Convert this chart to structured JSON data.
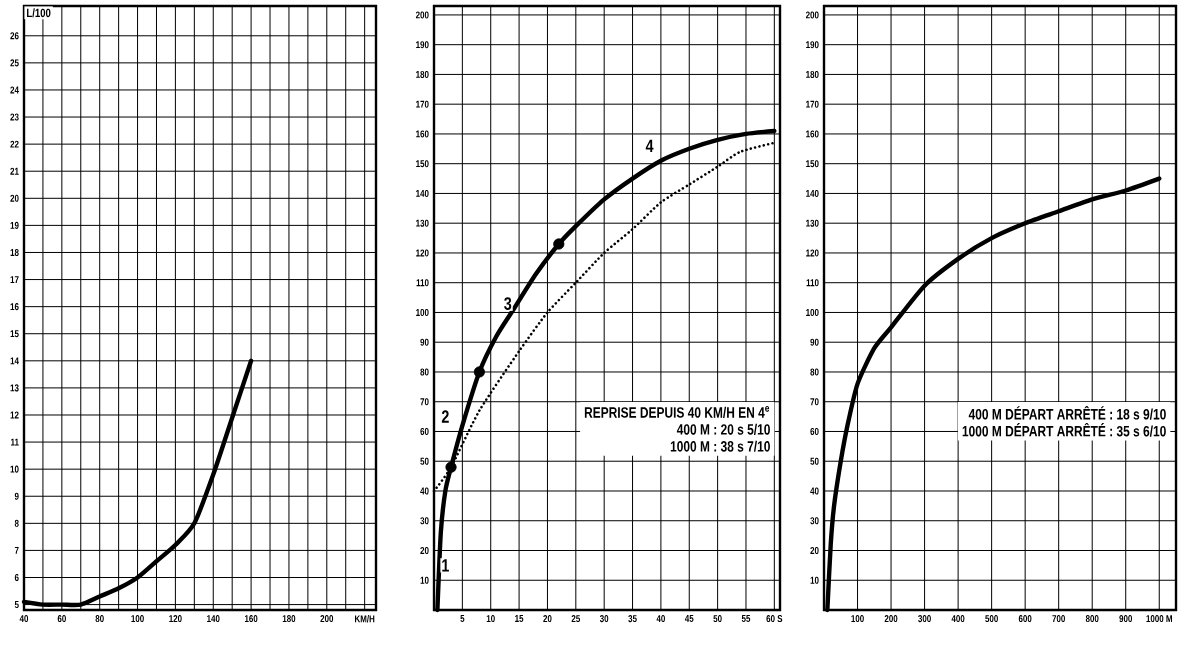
{
  "chart_data": [
    {
      "type": "line",
      "ylabel": "L/100",
      "xlim": [
        40,
        226
      ],
      "ylim": [
        4.8,
        27.1
      ],
      "grid": true,
      "xticks": [
        40,
        {
          "value": 50,
          "label": null
        },
        60,
        {
          "value": 70,
          "label": null
        },
        80,
        {
          "value": 90,
          "label": null
        },
        100,
        {
          "value": 110,
          "label": null
        },
        120,
        {
          "value": 130,
          "label": null
        },
        140,
        {
          "value": 150,
          "label": null
        },
        160,
        {
          "value": 170,
          "label": null
        },
        180,
        {
          "value": 190,
          "label": null
        },
        200,
        {
          "value": 210,
          "label": null
        },
        {
          "value": 220,
          "label": "KM/H"
        }
      ],
      "yticks": [
        5,
        6,
        7,
        8,
        9,
        10,
        11,
        12,
        13,
        14,
        15,
        16,
        17,
        18,
        19,
        20,
        21,
        22,
        23,
        24,
        25,
        26
      ],
      "series": [
        {
          "color": "#000000",
          "x": [
            40,
            50,
            60,
            70,
            80,
            90,
            100,
            110,
            120,
            130,
            140,
            150,
            160
          ],
          "values": [
            5.1,
            5.0,
            5.0,
            5.0,
            5.3,
            5.6,
            6.0,
            6.6,
            7.2,
            8.0,
            9.8,
            11.9,
            14.0
          ]
        }
      ]
    },
    {
      "type": "line",
      "xlim": [
        0,
        61
      ],
      "ylim": [
        0,
        203
      ],
      "grid": true,
      "xticks": [
        5,
        10,
        15,
        20,
        25,
        30,
        35,
        40,
        45,
        50,
        55,
        {
          "value": 60,
          "label": "60 S"
        }
      ],
      "yticks": [
        10,
        20,
        30,
        40,
        50,
        60,
        70,
        80,
        90,
        100,
        110,
        120,
        130,
        140,
        150,
        160,
        170,
        180,
        190,
        200
      ],
      "series": [
        {
          "color": "#000000",
          "x": [
            0.6,
            1.2,
            2,
            3,
            5,
            8,
            11,
            14,
            18,
            22,
            25,
            30,
            35,
            40,
            45,
            50,
            55,
            60
          ],
          "values": [
            0,
            26,
            40,
            48,
            62,
            80,
            92,
            101,
            113,
            123,
            129,
            138,
            145,
            151,
            155,
            158,
            160,
            161
          ]
        },
        {
          "color": "#000000",
          "line_style": "dotted",
          "x": [
            0,
            3,
            8,
            15,
            20,
            25,
            30,
            35,
            40,
            45,
            50,
            54,
            60
          ],
          "values": [
            40,
            48,
            67,
            87,
            100,
            110,
            120,
            128,
            137,
            143,
            149,
            154,
            157
          ]
        },
        {
          "type": "scatter",
          "marker": "circle",
          "color": "#000000",
          "x": [
            3,
            8,
            22
          ],
          "values": [
            48,
            80,
            123
          ]
        }
      ],
      "annotations": [
        {
          "text": "1",
          "x": 2,
          "y": 15
        },
        {
          "text": "2",
          "x": 2,
          "y": 65
        },
        {
          "text": "3",
          "x": 13,
          "y": 103
        },
        {
          "text": "4",
          "x": 38,
          "y": 156
        },
        "REPRISE DEPUIS 40 KM/H EN 4$^{e}$",
        "400 M : 20 s 5/10",
        "1000 M : 38 s 7/10"
      ]
    },
    {
      "type": "line",
      "xlim": [
        0,
        1050
      ],
      "ylim": [
        0,
        203
      ],
      "grid": true,
      "xticks": [
        100,
        200,
        300,
        400,
        500,
        600,
        700,
        800,
        900,
        {
          "value": 1000,
          "label": "1000 M"
        }
      ],
      "yticks": [
        10,
        20,
        30,
        40,
        50,
        60,
        70,
        80,
        90,
        100,
        110,
        120,
        130,
        140,
        150,
        160,
        170,
        180,
        190,
        200
      ],
      "series": [
        {
          "color": "#000000",
          "x": [
            10,
            20,
            30,
            50,
            70,
            100,
            150,
            200,
            300,
            400,
            500,
            600,
            700,
            800,
            900,
            1000
          ],
          "values": [
            0,
            22,
            35,
            50,
            62,
            76,
            88,
            95,
            109,
            118,
            125,
            130,
            134,
            138,
            141,
            145
          ]
        }
      ],
      "annotations": [
        "400 M DÉPART ARRÊTÉ : 18 s 9/10",
        "1000 M DÉPART ARRÊTÉ : 35 s 6/10"
      ]
    }
  ]
}
